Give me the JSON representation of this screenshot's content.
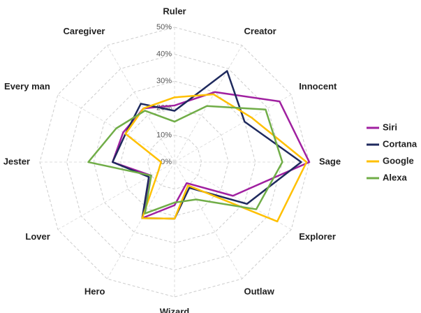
{
  "chart_data": {
    "type": "radar",
    "categories": [
      "Ruler",
      "Creator",
      "Innocent",
      "Sage",
      "Explorer",
      "Outlaw",
      "Wizard",
      "Hero",
      "Lover",
      "Jester",
      "Every man",
      "Caregiver"
    ],
    "series": [
      {
        "name": "Siri",
        "color": "#a020a0",
        "values": [
          21,
          30,
          45,
          50,
          25,
          9,
          16,
          24,
          10,
          23,
          22,
          23
        ]
      },
      {
        "name": "Cortana",
        "color": "#1f2a5e",
        "values": [
          19,
          39,
          30,
          47,
          31,
          11,
          21,
          24,
          11,
          23,
          21,
          25
        ]
      },
      {
        "name": "Google",
        "color": "#ffc000",
        "values": [
          24,
          29,
          33,
          49,
          44,
          10,
          21,
          24,
          7,
          5,
          21,
          23
        ]
      },
      {
        "name": "Alexa",
        "color": "#70ad47",
        "values": [
          15,
          24,
          39,
          40,
          35,
          16,
          15,
          22,
          10,
          32,
          25,
          22
        ]
      }
    ],
    "ylim": [
      0,
      50
    ],
    "yticks": [
      {
        "value": 0,
        "label": "0%"
      },
      {
        "value": 10,
        "label": "10%"
      },
      {
        "value": 20,
        "label": "20%"
      },
      {
        "value": 30,
        "label": "30%"
      },
      {
        "value": 40,
        "label": "40%"
      },
      {
        "value": 50,
        "label": "50%"
      }
    ],
    "grid": true,
    "legend": "right"
  }
}
